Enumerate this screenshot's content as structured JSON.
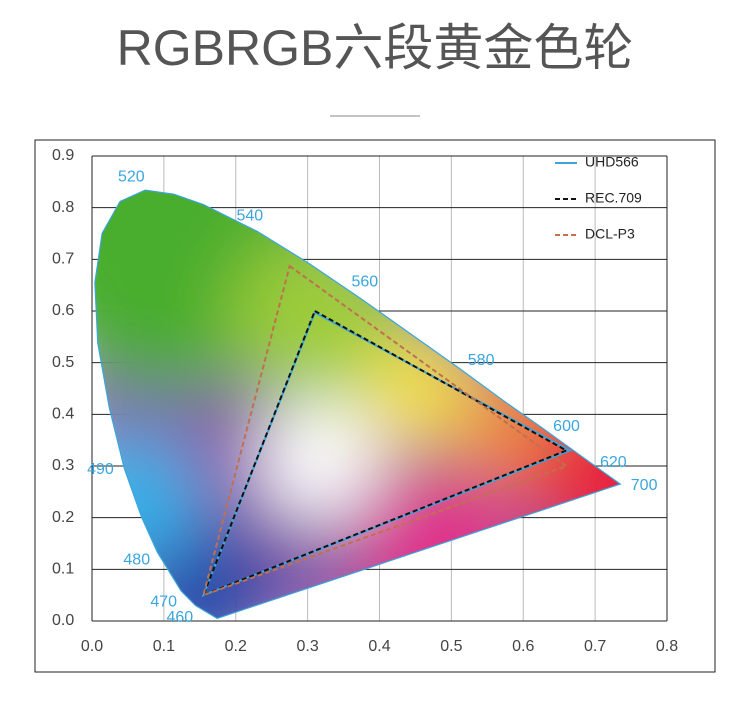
{
  "header": {
    "title": "RGBRGB六段黄金色轮"
  },
  "chart_data": {
    "type": "gamut",
    "xlim": [
      0,
      0.8
    ],
    "ylim": [
      0,
      0.9
    ],
    "xticks": [
      {
        "value": 0,
        "label": "0.0"
      },
      0.1,
      0.2,
      0.3,
      0.4,
      0.5,
      0.6,
      0.7,
      0.8
    ],
    "yticks": [
      {
        "value": 0,
        "label": "0.0"
      },
      0.1,
      0.2,
      0.3,
      0.4,
      0.5,
      0.6,
      0.7,
      0.8,
      0.9
    ],
    "grid": true,
    "legend": "top-right",
    "locus": {
      "color": "#3aa6dd",
      "wavelengths": [
        null,
        460,
        470,
        480,
        null,
        490,
        null,
        null,
        null,
        null,
        null,
        520,
        null,
        null,
        540,
        null,
        560,
        null,
        580,
        null,
        600,
        null,
        620,
        null,
        700
      ],
      "x": [
        0.174,
        0.144,
        0.124,
        0.091,
        0.069,
        0.045,
        0.024,
        0.008,
        0.004,
        0.014,
        0.039,
        0.074,
        0.114,
        0.155,
        0.23,
        0.302,
        0.373,
        0.444,
        0.513,
        0.575,
        0.627,
        0.666,
        0.692,
        0.719,
        0.735
      ],
      "y": [
        0.005,
        0.03,
        0.058,
        0.133,
        0.201,
        0.295,
        0.413,
        0.538,
        0.655,
        0.75,
        0.812,
        0.834,
        0.826,
        0.806,
        0.754,
        0.692,
        0.625,
        0.555,
        0.487,
        0.424,
        0.373,
        0.334,
        0.308,
        0.281,
        0.265
      ]
    },
    "series": [
      {
        "name": "UHD566",
        "color": "#3aa6dd",
        "dash": false,
        "x": [
          0.31,
          0.665,
          0.155
        ],
        "y": [
          0.597,
          0.33,
          0.05
        ]
      },
      {
        "name": "REC.709",
        "color": "#111111",
        "dash": true,
        "x": [
          0.31,
          0.66,
          0.155
        ],
        "y": [
          0.6,
          0.33,
          0.05
        ]
      },
      {
        "name": "DCL-P3",
        "color": "#c0704f",
        "dash": true,
        "x": [
          0.275,
          0.66,
          0.155
        ],
        "y": [
          0.687,
          0.3,
          0.05
        ]
      }
    ]
  }
}
